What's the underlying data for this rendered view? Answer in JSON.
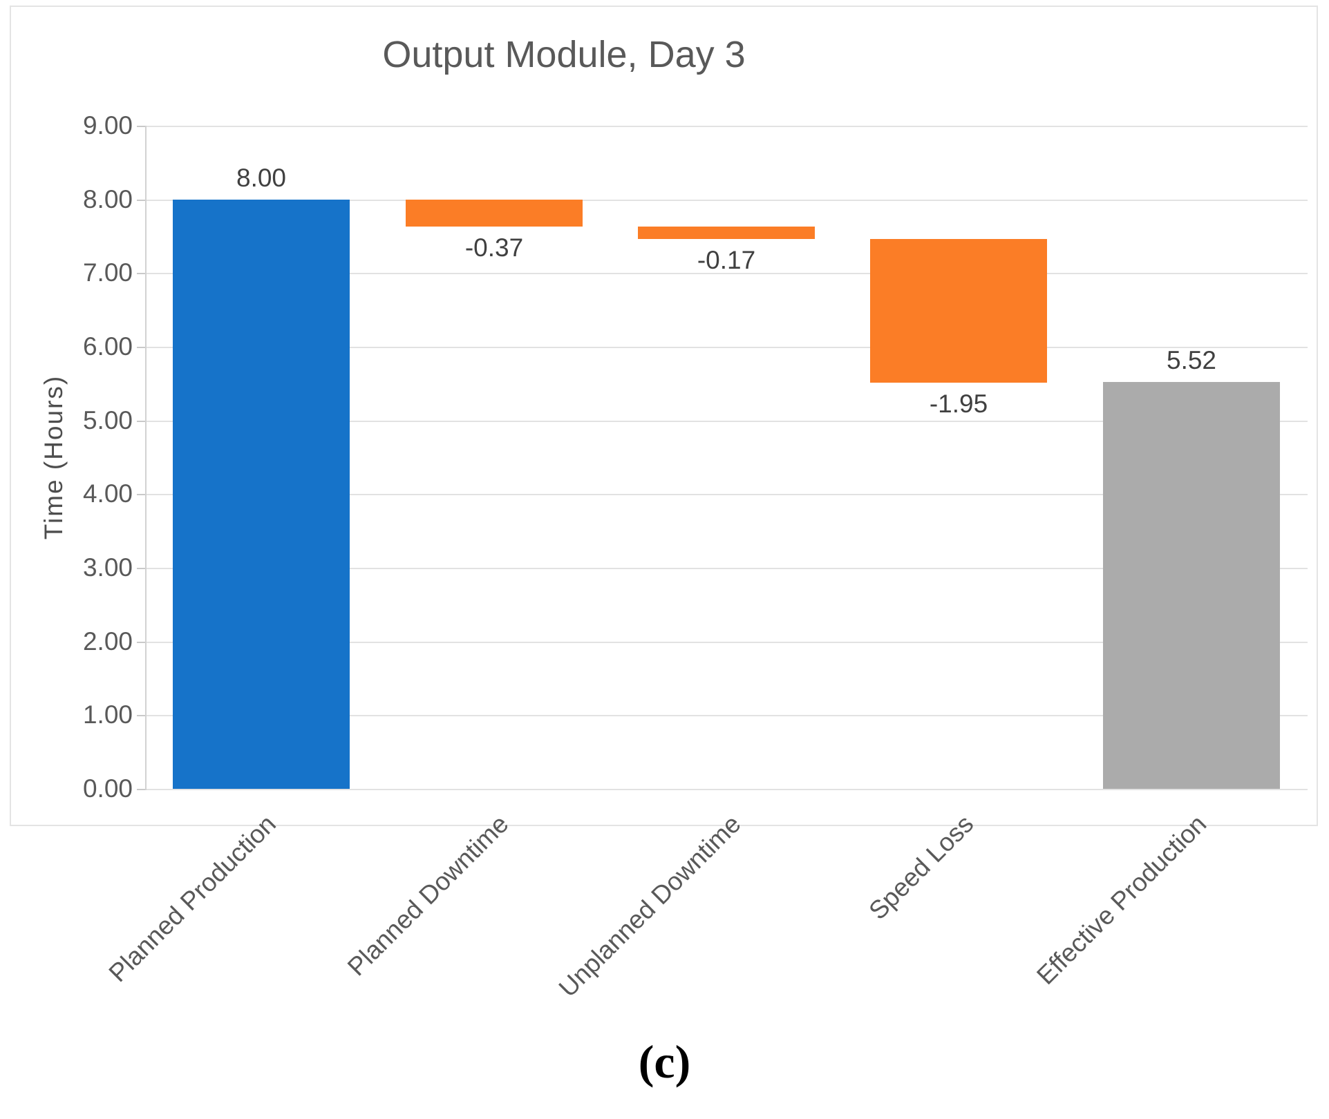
{
  "figure": {
    "caption": "(c)"
  },
  "chart_data": {
    "type": "bar",
    "subtype": "waterfall",
    "title": "Output Module, Day 3",
    "xlabel": "",
    "ylabel": "Time (Hours)",
    "ylim": [
      0,
      9
    ],
    "ytick_step": 1,
    "ytick_labels": [
      "0.00",
      "1.00",
      "2.00",
      "3.00",
      "4.00",
      "5.00",
      "6.00",
      "7.00",
      "8.00",
      "9.00"
    ],
    "grid": true,
    "legend": "none",
    "categories": [
      "Planned Production",
      "Planned Downtime",
      "Unplanned Downtime",
      "Speed Loss",
      "Effective Production"
    ],
    "bars": [
      {
        "label": "Planned Production",
        "value": 8.0,
        "display": "8.00",
        "kind": "total",
        "color_key": "blue",
        "label_position": "above"
      },
      {
        "label": "Planned Downtime",
        "value": -0.37,
        "display": "-0.37",
        "kind": "delta",
        "color_key": "orange",
        "label_position": "below"
      },
      {
        "label": "Unplanned Downtime",
        "value": -0.17,
        "display": "-0.17",
        "kind": "delta",
        "color_key": "orange",
        "label_position": "below"
      },
      {
        "label": "Speed Loss",
        "value": -1.95,
        "display": "-1.95",
        "kind": "delta",
        "color_key": "orange",
        "label_position": "below"
      },
      {
        "label": "Effective Production",
        "value": 5.52,
        "display": "5.52",
        "kind": "total",
        "color_key": "gray",
        "label_position": "above"
      }
    ],
    "colors": {
      "blue": "#1673C9",
      "orange": "#FB7D26",
      "gray": "#ABABAB"
    },
    "gridline_color": "#E2E2E2",
    "axis_color": "#D2D2D2",
    "text_color": "#595959"
  }
}
